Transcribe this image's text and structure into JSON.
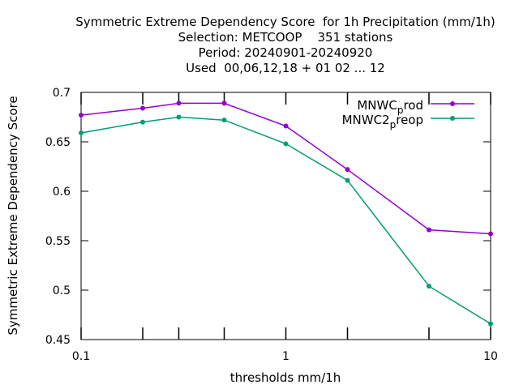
{
  "chart_data": {
    "type": "line",
    "title_lines": [
      "Symmetric Extreme Dependency Score  for 1h Precipitation (mm/1h)",
      "Selection: METCOOP    351 stations",
      "Period: 20240901-20240920",
      "Used  00,06,12,18 + 01 02 ... 12"
    ],
    "xlabel": "thresholds mm/1h",
    "ylabel": "Symmetric Extreme Dependency Score",
    "xscale": "log",
    "xlim": [
      0.1,
      10
    ],
    "ylim": [
      0.45,
      0.7
    ],
    "xticks": [
      {
        "value": 0.1,
        "label": "0.1"
      },
      {
        "value": 1,
        "label": "1"
      },
      {
        "value": 10,
        "label": "10"
      }
    ],
    "minor_xticks": [
      0.2,
      0.3,
      0.5,
      2,
      5
    ],
    "yticks": [
      {
        "value": 0.45,
        "label": "0.45"
      },
      {
        "value": 0.5,
        "label": "0.5"
      },
      {
        "value": 0.55,
        "label": "0.55"
      },
      {
        "value": 0.6,
        "label": "0.6"
      },
      {
        "value": 0.65,
        "label": "0.65"
      },
      {
        "value": 0.7,
        "label": "0.7"
      }
    ],
    "grid": false,
    "legend_position": "top-right",
    "x": [
      0.1,
      0.2,
      0.3,
      0.5,
      1,
      2,
      5,
      10
    ],
    "series": [
      {
        "name_main": "MNWC",
        "name_sub": "p",
        "name_rest": "rod",
        "color": "#9400d3",
        "values": [
          0.677,
          0.684,
          0.689,
          0.689,
          0.666,
          0.622,
          0.561,
          0.557
        ]
      },
      {
        "name_main": "MNWC2",
        "name_sub": "p",
        "name_rest": "reop",
        "color": "#009e73",
        "values": [
          0.659,
          0.67,
          0.675,
          0.672,
          0.648,
          0.611,
          0.504,
          0.466
        ]
      }
    ]
  }
}
